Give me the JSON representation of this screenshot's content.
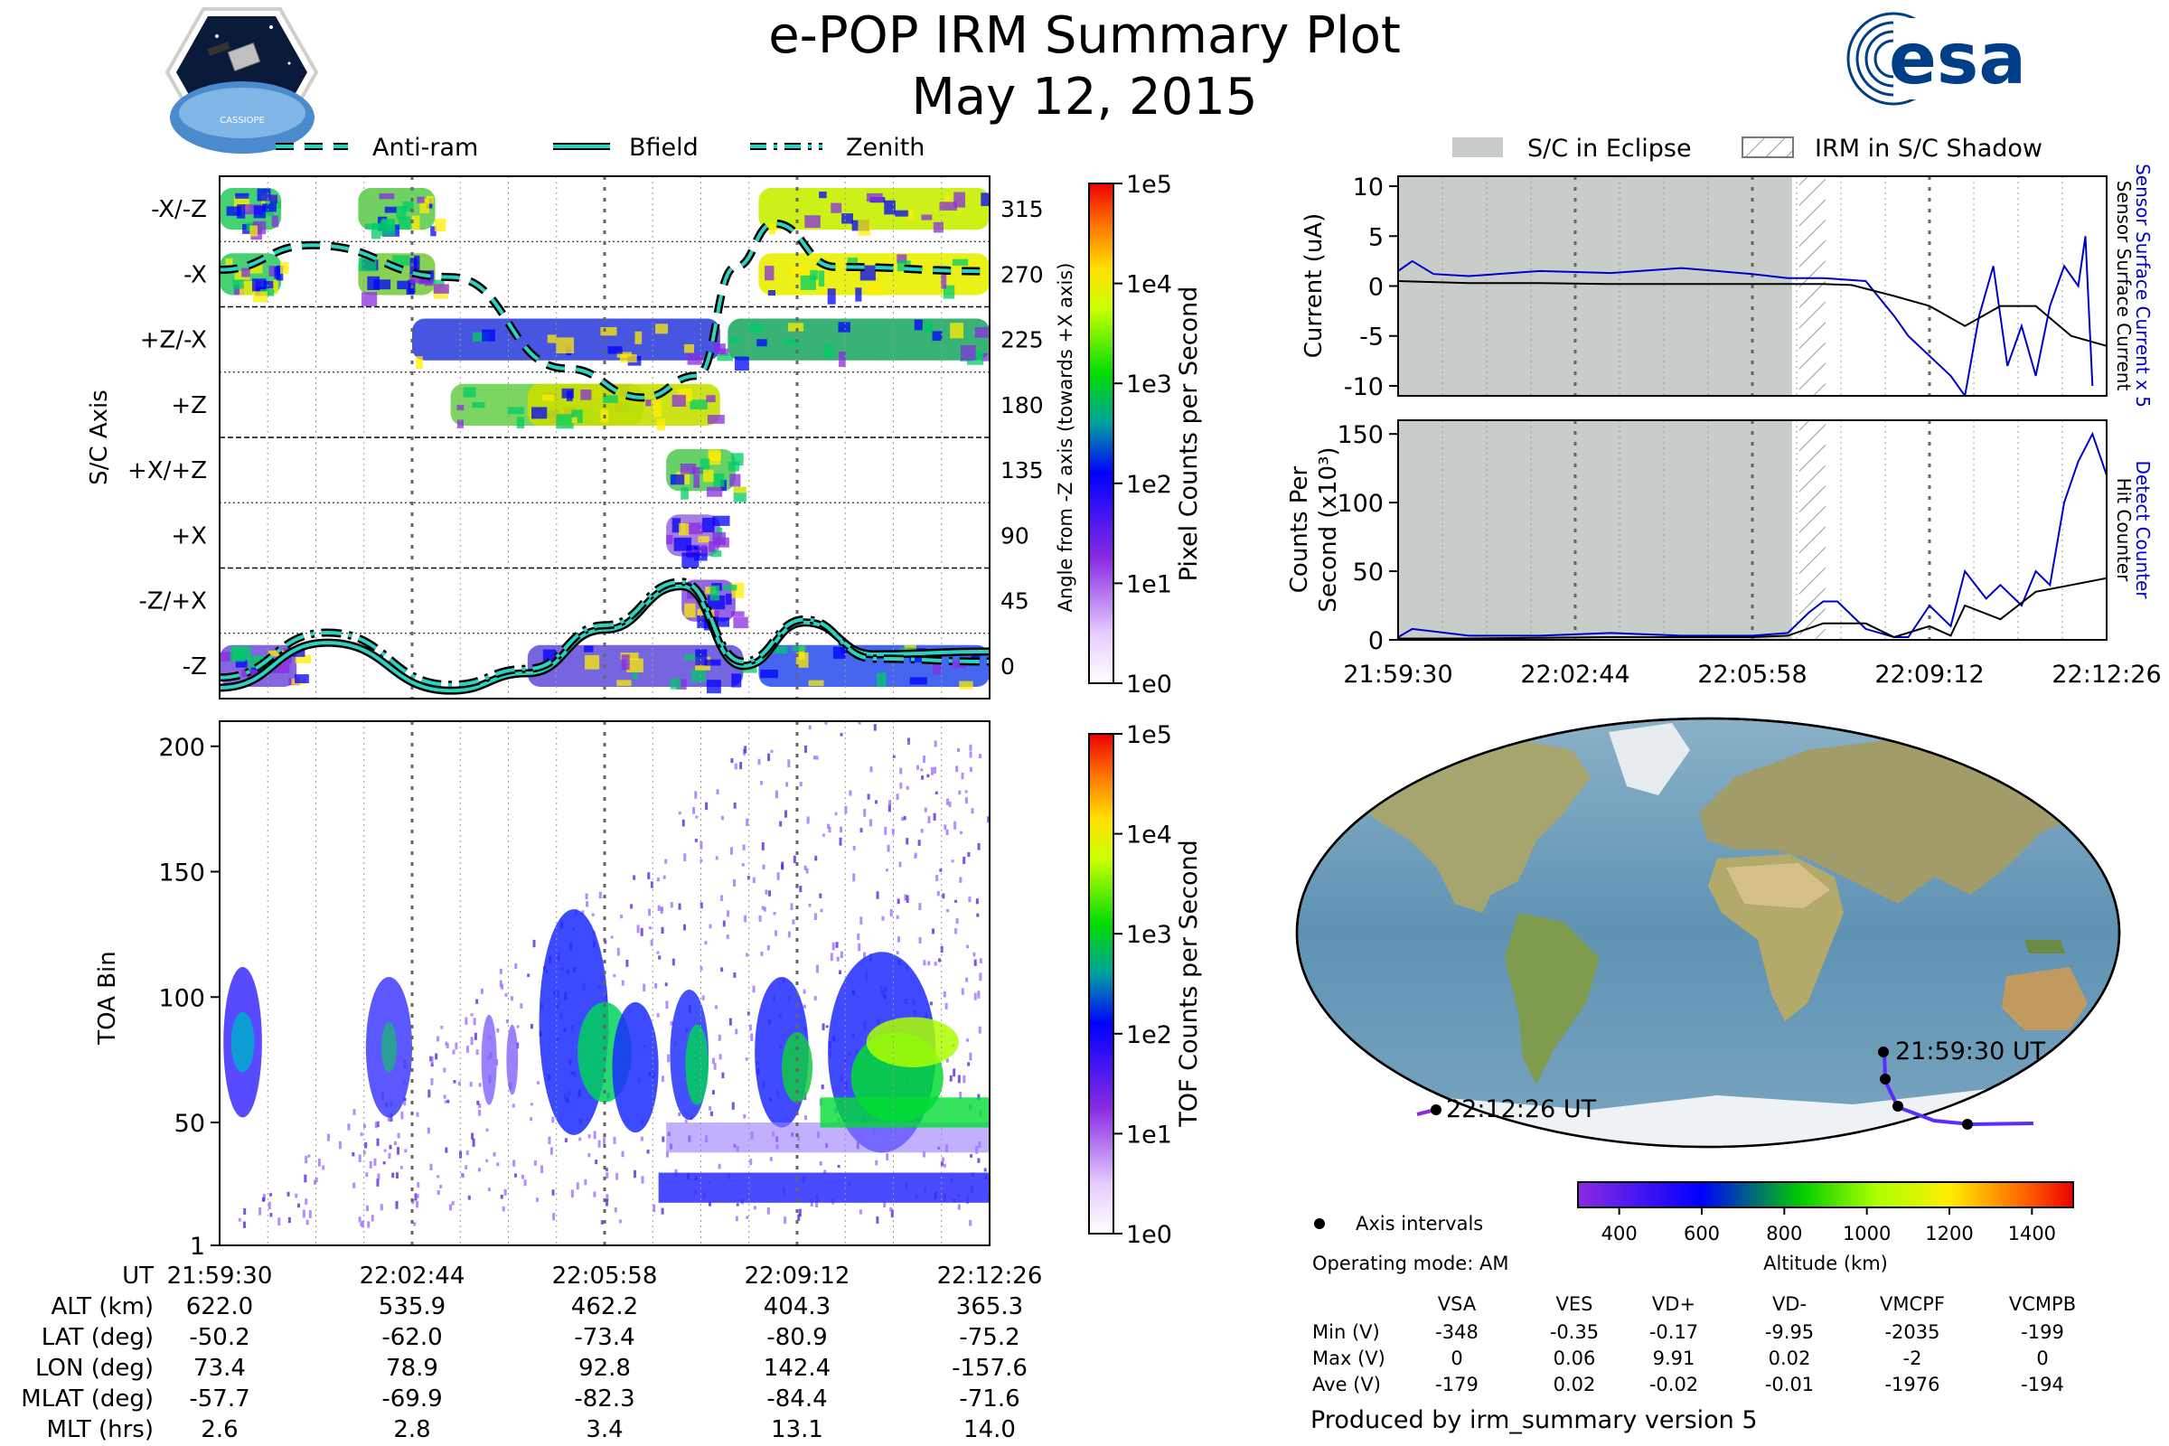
{
  "header": {
    "title": "e-POP IRM Summary Plot",
    "date": "May 12, 2015",
    "mission_logo_text": "CASSIOPE",
    "agency_logo_text": "esa"
  },
  "legend_left": [
    "Anti-ram",
    "Bfield",
    "Zenith"
  ],
  "legend_right": {
    "eclipse": "S/C in Eclipse",
    "shadow": "IRM in S/C Shadow"
  },
  "chart_data": [
    {
      "type": "heatmap",
      "id": "sc_axis",
      "ylabel": "S/C Axis",
      "y_categories": [
        "-X/-Z",
        "-X",
        "+Z/-X",
        "+Z",
        "+X/+Z",
        "+X",
        "-Z/+X",
        "-Z"
      ],
      "y2label": "Angle from -Z axis (towards +X axis)",
      "y2_ticks": [
        315,
        270,
        225,
        180,
        135,
        90,
        45,
        0
      ],
      "colorbar": {
        "label": "Pixel Counts per Second",
        "ticks": [
          "1e5",
          "1e4",
          "1e3",
          "1e2",
          "1e1",
          "1e0"
        ]
      },
      "lines": [
        {
          "name": "Anti-ram",
          "style": "dashed",
          "x": [
            0,
            0.12,
            0.3,
            0.45,
            0.55,
            0.62,
            0.67,
            0.72,
            0.8,
            1.0
          ],
          "angle": [
            273,
            290,
            268,
            205,
            185,
            200,
            275,
            305,
            275,
            272
          ]
        },
        {
          "name": "Bfield",
          "style": "solid",
          "x": [
            0,
            0.14,
            0.3,
            0.4,
            0.5,
            0.6,
            0.68,
            0.76,
            0.85,
            1.0
          ],
          "angle": [
            -15,
            16,
            -17,
            -5,
            25,
            55,
            0,
            30,
            8,
            10
          ]
        },
        {
          "name": "Zenith",
          "style": "dashdot",
          "x": [
            0,
            0.14,
            0.3,
            0.4,
            0.5,
            0.6,
            0.68,
            0.76,
            0.85,
            1.0
          ],
          "angle": [
            -8,
            23,
            -13,
            -2,
            28,
            58,
            3,
            32,
            5,
            3
          ]
        }
      ]
    },
    {
      "type": "heatmap",
      "id": "toa",
      "ylabel": "TOA Bin",
      "yticks": [
        1,
        50,
        100,
        150,
        200
      ],
      "ylim": [
        1,
        210
      ],
      "colorbar": {
        "label": "TOF Counts per Second",
        "ticks": [
          "1e5",
          "1e4",
          "1e3",
          "1e2",
          "1e1",
          "1e0"
        ]
      }
    },
    {
      "type": "line",
      "id": "current",
      "ylabel": "Current (uA)",
      "y2label_1": "Sensor Surface Current x 5",
      "y2label_2": "Sensor Surface Current",
      "yticks": [
        10,
        5,
        0,
        -5,
        -10
      ],
      "ylim": [
        -11,
        11
      ],
      "series": [
        {
          "name": "Sensor Surface Current x 5",
          "color": "#0000cc",
          "x": [
            0,
            0.02,
            0.05,
            0.1,
            0.2,
            0.3,
            0.4,
            0.5,
            0.55,
            0.6,
            0.66,
            0.7,
            0.72,
            0.75,
            0.78,
            0.8,
            0.82,
            0.84,
            0.86,
            0.88,
            0.9,
            0.92,
            0.94,
            0.96,
            0.97,
            0.98
          ],
          "values": [
            1.5,
            2.5,
            1.2,
            1.0,
            1.5,
            1.3,
            1.8,
            1.2,
            0.8,
            0.8,
            0.5,
            -3,
            -5,
            -7,
            -9,
            -11,
            -3,
            2,
            -8,
            -4,
            -9,
            -2,
            2,
            0,
            5,
            -10
          ]
        },
        {
          "name": "Sensor Surface Current",
          "color": "#000000",
          "x": [
            0,
            0.1,
            0.2,
            0.3,
            0.4,
            0.5,
            0.6,
            0.64,
            0.7,
            0.75,
            0.8,
            0.85,
            0.9,
            0.95,
            1.0
          ],
          "values": [
            0.5,
            0.3,
            0.3,
            0.2,
            0.2,
            0.2,
            0.2,
            0.1,
            -1,
            -2,
            -4,
            -2,
            -2,
            -5,
            -6
          ]
        }
      ]
    },
    {
      "type": "line",
      "id": "counts",
      "ylabel": "Counts Per Second (x10³)",
      "y2label_1": "Detect Counter",
      "y2label_2": "Hit Counter",
      "yticks": [
        150,
        100,
        50,
        0
      ],
      "ylim": [
        0,
        160
      ],
      "xticks": [
        "21:59:30",
        "22:02:44",
        "22:05:58",
        "22:09:12",
        "22:12:26"
      ],
      "series": [
        {
          "name": "Detect Counter",
          "color": "#0000cc",
          "x": [
            0,
            0.02,
            0.1,
            0.2,
            0.3,
            0.4,
            0.5,
            0.55,
            0.58,
            0.6,
            0.62,
            0.66,
            0.7,
            0.72,
            0.75,
            0.78,
            0.8,
            0.83,
            0.85,
            0.88,
            0.9,
            0.92,
            0.94,
            0.96,
            0.98,
            1.0
          ],
          "values": [
            2,
            8,
            3,
            3,
            5,
            3,
            3,
            5,
            20,
            28,
            28,
            8,
            2,
            2,
            25,
            10,
            50,
            30,
            40,
            25,
            50,
            40,
            100,
            130,
            150,
            120
          ]
        },
        {
          "name": "Hit Counter",
          "color": "#000000",
          "x": [
            0,
            0.1,
            0.3,
            0.5,
            0.55,
            0.6,
            0.66,
            0.7,
            0.75,
            0.78,
            0.8,
            0.85,
            0.9,
            0.95,
            1.0
          ],
          "values": [
            1,
            1,
            2,
            2,
            3,
            12,
            12,
            2,
            10,
            3,
            25,
            15,
            35,
            40,
            45
          ]
        }
      ]
    }
  ],
  "time_axis": {
    "labels": [
      "UT",
      "ALT (km)",
      "LAT (deg)",
      "LON (deg)",
      "MLAT (deg)",
      "MLT (hrs)"
    ],
    "columns": [
      [
        "21:59:30",
        "622.0",
        "-50.2",
        "73.4",
        "-57.7",
        "2.6"
      ],
      [
        "22:02:44",
        "535.9",
        "-62.0",
        "78.9",
        "-69.9",
        "2.8"
      ],
      [
        "22:05:58",
        "462.2",
        "-73.4",
        "92.8",
        "-82.3",
        "3.4"
      ],
      [
        "22:09:12",
        "404.3",
        "-80.9",
        "142.4",
        "-84.4",
        "13.1"
      ],
      [
        "22:12:26",
        "365.3",
        "-75.2",
        "-157.6",
        "-71.6",
        "14.0"
      ]
    ]
  },
  "map": {
    "start_label": "21:59:30 UT",
    "end_label": "22:12:26 UT",
    "colorbar_label": "Altitude (km)",
    "colorbar_ticks": [
      "400",
      "600",
      "800",
      "1000",
      "1200",
      "1400"
    ]
  },
  "info": {
    "axis_intervals": "Axis intervals",
    "operating_mode": "Operating mode: AM",
    "table_headers": [
      "",
      "VSA",
      "VES",
      "VD+",
      "VD-",
      "VMCPF",
      "VCMPB"
    ],
    "table_rows": [
      [
        "Min (V)",
        "-348",
        "-0.35",
        "-0.17",
        "-9.95",
        "-2035",
        "-199"
      ],
      [
        "Max (V)",
        "0",
        "0.06",
        "9.91",
        "0.02",
        "-2",
        "0"
      ],
      [
        "Ave (V)",
        "-179",
        "0.02",
        "-0.02",
        "-0.01",
        "-1976",
        "-194"
      ]
    ],
    "produced_by": "Produced by irm_summary version 5"
  },
  "colors": {
    "eclipse": "#c9cdca",
    "detect": "#0000cc",
    "teal": "#2ad4c0"
  }
}
